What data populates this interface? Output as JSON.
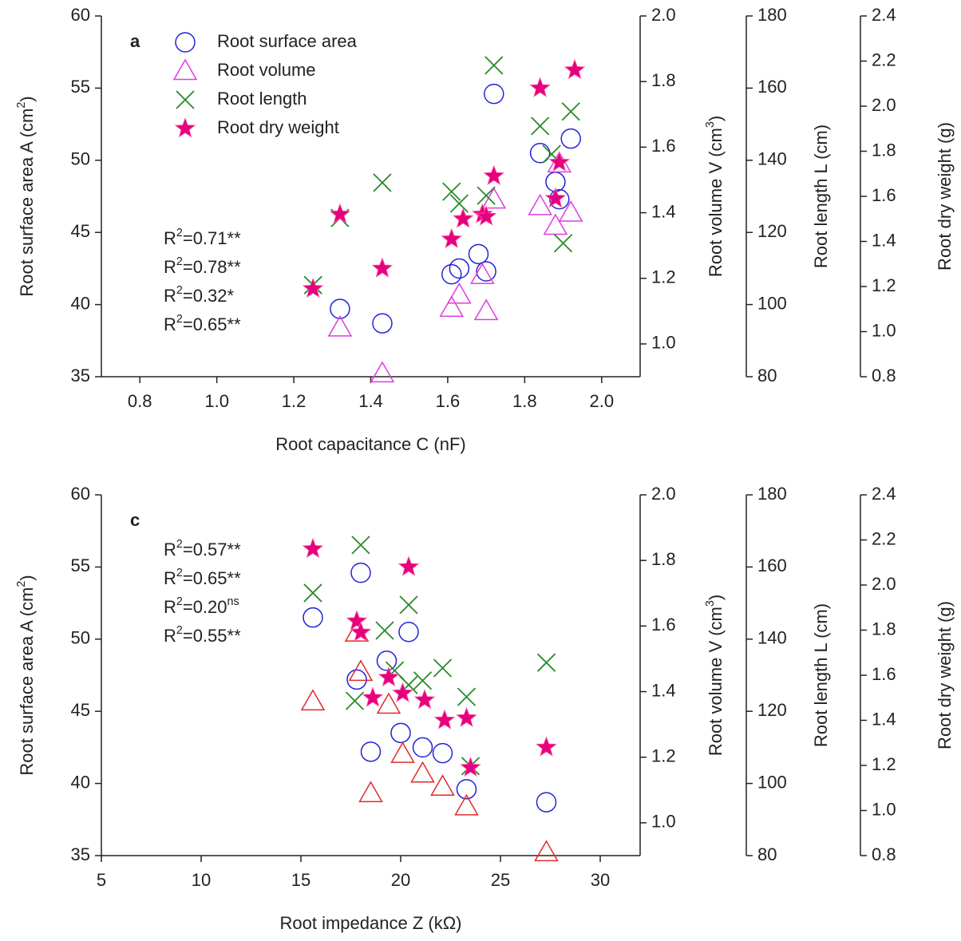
{
  "chart_data": [
    {
      "type": "scatter",
      "panel_label": "a",
      "xlabel": "Root capacitance C (nF)",
      "ylabel": {
        "pre": "Root surface area A (cm",
        "sup": "2",
        "post": ")"
      },
      "y2label": {
        "pre": "Root volume V (cm",
        "sup": "3",
        "post": ")"
      },
      "y3label": "Root length L (cm)",
      "y4label": "Root dry weight (g)",
      "xlim": [
        0.7,
        2.1
      ],
      "xticks": [
        0.8,
        {
          "value": 1.0,
          "label": "1.0"
        },
        1.2,
        1.4,
        1.6,
        1.8,
        {
          "value": 2.0,
          "label": "2.0"
        }
      ],
      "ylim": [
        35,
        60
      ],
      "yticks": [
        35,
        40,
        45,
        50,
        55,
        60
      ],
      "y2lim": [
        0.9,
        2.0
      ],
      "y2ticks": [
        {
          "value": 1.0,
          "label": "1.0"
        },
        1.2,
        1.4,
        1.6,
        1.8,
        {
          "value": 2.0,
          "label": "2.0"
        }
      ],
      "y3lim": [
        80,
        180
      ],
      "y3ticks": [
        80,
        100,
        120,
        140,
        160,
        180
      ],
      "y4lim": [
        0.8,
        2.4
      ],
      "y4ticks": [
        0.8,
        {
          "value": 1.0,
          "label": "1.0"
        },
        1.2,
        1.4,
        1.6,
        1.8,
        {
          "value": 2.0,
          "label": "2.0"
        },
        2.2,
        2.4
      ],
      "legend": "upper left",
      "series": [
        {
          "name": "Root surface area",
          "marker": "circle",
          "color": "#2323d6",
          "axis": "y",
          "x": [
            1.32,
            1.43,
            1.61,
            1.63,
            1.68,
            1.7,
            1.72,
            1.84,
            1.88,
            1.89,
            1.92
          ],
          "values": [
            39.7,
            38.7,
            42.1,
            42.5,
            43.5,
            42.3,
            54.6,
            50.5,
            48.5,
            47.3,
            51.5
          ]
        },
        {
          "name": "Root volume",
          "marker": "triangle",
          "color": "#e03ce0",
          "axis": "y2",
          "x": [
            1.32,
            1.43,
            1.61,
            1.63,
            1.69,
            1.7,
            1.72,
            1.84,
            1.88,
            1.89,
            1.92
          ],
          "values": [
            1.05,
            0.91,
            1.11,
            1.15,
            1.21,
            1.1,
            1.44,
            1.42,
            1.36,
            1.55,
            1.4
          ]
        },
        {
          "name": "Root length",
          "marker": "x",
          "color": "#2a8a2a",
          "axis": "y3",
          "x": [
            1.25,
            1.32,
            1.43,
            1.61,
            1.63,
            1.7,
            1.72,
            1.84,
            1.87,
            1.9,
            1.92
          ],
          "values": [
            105.4,
            124.0,
            133.8,
            131.3,
            128.0,
            130.2,
            166.3,
            149.5,
            141.7,
            117.0,
            153.5
          ]
        },
        {
          "name": "Root dry weight",
          "marker": "star",
          "color": "#e6007e",
          "axis": "y4",
          "x": [
            1.25,
            1.32,
            1.43,
            1.61,
            1.64,
            1.69,
            1.7,
            1.72,
            1.84,
            1.88,
            1.89,
            1.93
          ],
          "values": [
            1.19,
            1.52,
            1.28,
            1.41,
            1.5,
            1.52,
            1.51,
            1.69,
            2.08,
            1.59,
            1.75,
            2.16
          ]
        }
      ],
      "annotations": [
        {
          "base": "R",
          "sup": "2",
          "text": "=0.71**"
        },
        {
          "base": "R",
          "sup": "2",
          "text": "=0.78**"
        },
        {
          "base": "R",
          "sup": "2",
          "text": "=0.32*"
        },
        {
          "base": "R",
          "sup": "2",
          "text": "=0.65**"
        }
      ]
    },
    {
      "type": "scatter",
      "panel_label": "c",
      "xlabel": "Root impedance Z (kΩ)",
      "ylabel": {
        "pre": "Root surface area A (cm",
        "sup": "2",
        "post": ")"
      },
      "y2label": {
        "pre": "Root volume V (cm",
        "sup": "3",
        "post": ")"
      },
      "y3label": "Root length L (cm)",
      "y4label": "Root dry weight (g)",
      "xlim": [
        5,
        32
      ],
      "xticks": [
        5,
        10,
        15,
        20,
        25,
        30
      ],
      "ylim": [
        35,
        60
      ],
      "yticks": [
        35,
        40,
        45,
        50,
        55,
        60
      ],
      "y2lim": [
        0.9,
        2.0
      ],
      "y2ticks": [
        {
          "value": 1.0,
          "label": "1.0"
        },
        1.2,
        1.4,
        1.6,
        1.8,
        {
          "value": 2.0,
          "label": "2.0"
        }
      ],
      "y3lim": [
        80,
        180
      ],
      "y3ticks": [
        80,
        100,
        120,
        140,
        160,
        180
      ],
      "y4lim": [
        0.8,
        2.4
      ],
      "y4ticks": [
        0.8,
        {
          "value": 1.0,
          "label": "1.0"
        },
        1.2,
        1.4,
        1.6,
        1.8,
        {
          "value": 2.0,
          "label": "2.0"
        },
        2.2,
        2.4
      ],
      "series": [
        {
          "marker": "circle",
          "color": "#2323d6",
          "axis": "y",
          "x": [
            15.6,
            18.0,
            17.8,
            18.5,
            19.3,
            20.0,
            20.4,
            21.1,
            22.1,
            23.3,
            27.3
          ],
          "values": [
            51.5,
            54.6,
            47.2,
            42.2,
            48.5,
            43.5,
            50.5,
            42.5,
            42.1,
            39.6,
            38.7
          ]
        },
        {
          "marker": "triangle",
          "color": "#e02a2a",
          "axis": "y2",
          "x": [
            15.6,
            17.8,
            18.0,
            18.5,
            19.4,
            20.1,
            21.1,
            22.1,
            23.3,
            27.3
          ],
          "values": [
            1.37,
            1.58,
            1.46,
            1.09,
            1.36,
            1.21,
            1.15,
            1.11,
            1.05,
            0.91
          ]
        },
        {
          "marker": "x",
          "color": "#2a8a2a",
          "axis": "y3",
          "x": [
            15.6,
            18.0,
            17.7,
            19.2,
            20.4,
            19.7,
            20.4,
            21.1,
            22.1,
            23.3,
            23.5,
            27.3
          ],
          "values": [
            152.8,
            166.1,
            122.9,
            142.4,
            149.5,
            131.3,
            127.3,
            128.5,
            132.0,
            124.0,
            104.8,
            133.5
          ]
        },
        {
          "marker": "star",
          "color": "#e6007e",
          "axis": "y4",
          "x": [
            15.6,
            17.8,
            18.0,
            18.6,
            19.4,
            20.1,
            20.4,
            21.2,
            22.2,
            23.3,
            23.5,
            27.3
          ],
          "values": [
            2.16,
            1.84,
            1.79,
            1.5,
            1.59,
            1.52,
            2.08,
            1.49,
            1.4,
            1.41,
            1.19,
            1.28
          ]
        }
      ],
      "annotations": [
        {
          "base": "R",
          "sup": "2",
          "text": "=0.57**"
        },
        {
          "base": "R",
          "sup": "2",
          "text": "=0.65**"
        },
        {
          "base": "R",
          "sup": "2",
          "text": "=0.20",
          "tail_sup": "ns"
        },
        {
          "base": "R",
          "sup": "2",
          "text": "=0.55**"
        }
      ]
    }
  ]
}
